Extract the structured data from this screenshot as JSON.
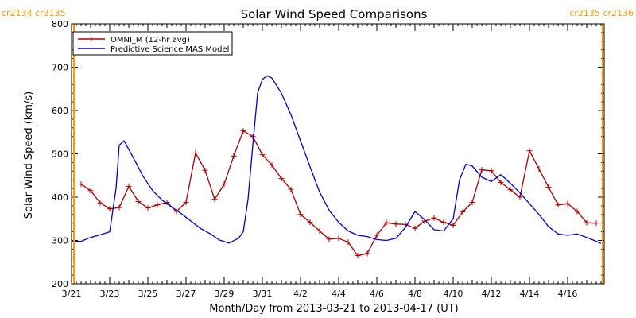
{
  "chart_data": {
    "type": "line",
    "title": "Solar Wind Speed Comparisons",
    "xlabel": "Month/Day from 2013-03-21 to 2013-04-17 (UT)",
    "ylabel": "Solar Wind Speed (km/s)",
    "xlim": [
      "2013-03-21",
      "2013-04-17T22:00"
    ],
    "ylim": [
      200,
      800
    ],
    "y_ticks": [
      200,
      300,
      400,
      500,
      600,
      700,
      800
    ],
    "x_ticks": [
      {
        "date": "2013-03-21",
        "label": "3/21"
      },
      {
        "date": "2013-03-23",
        "label": "3/23"
      },
      {
        "date": "2013-03-25",
        "label": "3/25"
      },
      {
        "date": "2013-03-27",
        "label": "3/27"
      },
      {
        "date": "2013-03-29",
        "label": "3/29"
      },
      {
        "date": "2013-03-31",
        "label": "3/31"
      },
      {
        "date": "2013-04-02",
        "label": "4/2"
      },
      {
        "date": "2013-04-04",
        "label": "4/4"
      },
      {
        "date": "2013-04-06",
        "label": "4/6"
      },
      {
        "date": "2013-04-08",
        "label": "4/8"
      },
      {
        "date": "2013-04-10",
        "label": "4/10"
      },
      {
        "date": "2013-04-12",
        "label": "4/12"
      },
      {
        "date": "2013-04-14",
        "label": "4/14"
      },
      {
        "date": "2013-04-16",
        "label": "4/16"
      }
    ],
    "carrington": {
      "left_labels": [
        "cr2134",
        "cr2135"
      ],
      "right_labels": [
        "cr2135",
        "cr2136"
      ],
      "lines": [
        "2013-03-21T03:00",
        "2013-04-17T20:00"
      ],
      "color": "#ff9900"
    },
    "legend_position": "top-left",
    "series": [
      {
        "name": "OMNI_M (12-hr avg)",
        "color": "#aa0000",
        "marker": "plus",
        "points": [
          [
            "2013-03-21T12:00",
            430
          ],
          [
            "2013-03-22T00:00",
            415
          ],
          [
            "2013-03-22T12:00",
            387
          ],
          [
            "2013-03-23T00:00",
            373
          ],
          [
            "2013-03-23T12:00",
            376
          ],
          [
            "2013-03-24T00:00",
            425
          ],
          [
            "2013-03-24T12:00",
            390
          ],
          [
            "2013-03-25T00:00",
            375
          ],
          [
            "2013-03-25T12:00",
            382
          ],
          [
            "2013-03-26T00:00",
            388
          ],
          [
            "2013-03-26T12:00",
            367
          ],
          [
            "2013-03-27T00:00",
            388
          ],
          [
            "2013-03-27T12:00",
            502
          ],
          [
            "2013-03-28T00:00",
            462
          ],
          [
            "2013-03-28T12:00",
            395
          ],
          [
            "2013-03-29T00:00",
            430
          ],
          [
            "2013-03-29T12:00",
            495
          ],
          [
            "2013-03-30T00:00",
            553
          ],
          [
            "2013-03-30T12:00",
            540
          ],
          [
            "2013-03-31T00:00",
            498
          ],
          [
            "2013-03-31T12:00",
            474
          ],
          [
            "2013-04-01T00:00",
            443
          ],
          [
            "2013-04-01T12:00",
            418
          ],
          [
            "2013-04-02T00:00",
            360
          ],
          [
            "2013-04-02T12:00",
            342
          ],
          [
            "2013-04-03T00:00",
            322
          ],
          [
            "2013-04-03T12:00",
            303
          ],
          [
            "2013-04-04T00:00",
            305
          ],
          [
            "2013-04-04T12:00",
            296
          ],
          [
            "2013-04-05T00:00",
            265
          ],
          [
            "2013-04-05T12:00",
            270
          ],
          [
            "2013-04-06T00:00",
            312
          ],
          [
            "2013-04-06T12:00",
            341
          ],
          [
            "2013-04-07T00:00",
            338
          ],
          [
            "2013-04-07T12:00",
            337
          ],
          [
            "2013-04-08T00:00",
            328
          ],
          [
            "2013-04-08T12:00",
            345
          ],
          [
            "2013-04-09T00:00",
            352
          ],
          [
            "2013-04-09T12:00",
            342
          ],
          [
            "2013-04-10T00:00",
            335
          ],
          [
            "2013-04-10T12:00",
            366
          ],
          [
            "2013-04-11T00:00",
            388
          ],
          [
            "2013-04-11T12:00",
            463
          ],
          [
            "2013-04-12T00:00",
            461
          ],
          [
            "2013-04-12T12:00",
            434
          ],
          [
            "2013-04-13T00:00",
            417
          ],
          [
            "2013-04-13T12:00",
            400
          ],
          [
            "2013-04-14T00:00",
            507
          ],
          [
            "2013-04-14T12:00",
            465
          ],
          [
            "2013-04-15T00:00",
            423
          ],
          [
            "2013-04-15T12:00",
            382
          ],
          [
            "2013-04-16T00:00",
            385
          ],
          [
            "2013-04-16T12:00",
            367
          ],
          [
            "2013-04-17T00:00",
            341
          ],
          [
            "2013-04-17T12:00",
            340
          ]
        ]
      },
      {
        "name": "Predictive Science MAS Model",
        "color": "#0000cc",
        "marker": "none",
        "points": [
          [
            "2013-03-21T00:00",
            298
          ],
          [
            "2013-03-21T12:00",
            298
          ],
          [
            "2013-03-22T00:00",
            307
          ],
          [
            "2013-03-22T12:00",
            313
          ],
          [
            "2013-03-23T00:00",
            320
          ],
          [
            "2013-03-23T08:00",
            420
          ],
          [
            "2013-03-23T12:00",
            520
          ],
          [
            "2013-03-23T18:00",
            530
          ],
          [
            "2013-03-24T06:00",
            490
          ],
          [
            "2013-03-24T18:00",
            448
          ],
          [
            "2013-03-25T06:00",
            415
          ],
          [
            "2013-03-25T18:00",
            393
          ],
          [
            "2013-03-26T06:00",
            377
          ],
          [
            "2013-03-26T18:00",
            362
          ],
          [
            "2013-03-27T06:00",
            345
          ],
          [
            "2013-03-27T18:00",
            328
          ],
          [
            "2013-03-28T06:00",
            316
          ],
          [
            "2013-03-28T18:00",
            301
          ],
          [
            "2013-03-29T06:00",
            294
          ],
          [
            "2013-03-29T18:00",
            305
          ],
          [
            "2013-03-30T00:00",
            320
          ],
          [
            "2013-03-30T06:00",
            395
          ],
          [
            "2013-03-30T12:00",
            520
          ],
          [
            "2013-03-30T18:00",
            640
          ],
          [
            "2013-03-31T00:00",
            672
          ],
          [
            "2013-03-31T06:00",
            680
          ],
          [
            "2013-03-31T12:00",
            675
          ],
          [
            "2013-04-01T00:00",
            640
          ],
          [
            "2013-04-01T12:00",
            590
          ],
          [
            "2013-04-02T00:00",
            530
          ],
          [
            "2013-04-02T12:00",
            470
          ],
          [
            "2013-04-03T00:00",
            412
          ],
          [
            "2013-04-03T12:00",
            370
          ],
          [
            "2013-04-04T00:00",
            342
          ],
          [
            "2013-04-04T12:00",
            322
          ],
          [
            "2013-04-05T00:00",
            312
          ],
          [
            "2013-04-05T12:00",
            309
          ],
          [
            "2013-04-06T00:00",
            302
          ],
          [
            "2013-04-06T12:00",
            300
          ],
          [
            "2013-04-07T00:00",
            305
          ],
          [
            "2013-04-07T12:00",
            330
          ],
          [
            "2013-04-08T00:00",
            367
          ],
          [
            "2013-04-08T12:00",
            348
          ],
          [
            "2013-04-09T00:00",
            325
          ],
          [
            "2013-04-09T12:00",
            322
          ],
          [
            "2013-04-10T00:00",
            350
          ],
          [
            "2013-04-10T08:00",
            440
          ],
          [
            "2013-04-10T16:00",
            476
          ],
          [
            "2013-04-11T00:00",
            472
          ],
          [
            "2013-04-11T12:00",
            446
          ],
          [
            "2013-04-12T00:00",
            436
          ],
          [
            "2013-04-12T12:00",
            452
          ],
          [
            "2013-04-13T00:00",
            432
          ],
          [
            "2013-04-13T12:00",
            410
          ],
          [
            "2013-04-14T00:00",
            385
          ],
          [
            "2013-04-14T12:00",
            360
          ],
          [
            "2013-04-15T00:00",
            332
          ],
          [
            "2013-04-15T12:00",
            315
          ],
          [
            "2013-04-16T00:00",
            312
          ],
          [
            "2013-04-16T12:00",
            315
          ],
          [
            "2013-04-17T00:00",
            307
          ],
          [
            "2013-04-17T12:00",
            298
          ],
          [
            "2013-04-17T18:00",
            293
          ]
        ]
      }
    ]
  }
}
